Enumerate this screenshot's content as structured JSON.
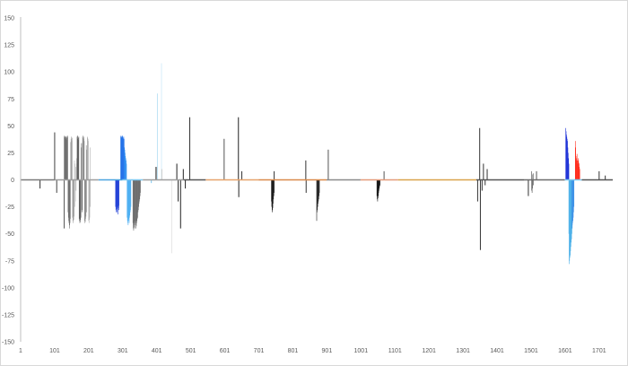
{
  "chart_data": {
    "type": "bar",
    "title": "",
    "xlabel": "",
    "ylabel": "",
    "ylim": [
      -150,
      150
    ],
    "xlim": [
      1,
      1741
    ],
    "grid": false,
    "legend": "none",
    "yticks": [
      "150",
      "125",
      "100",
      "75",
      "50",
      "25",
      "0",
      "-25",
      "-50",
      "-75",
      "-100",
      "-125",
      "-150"
    ],
    "xticks": [
      "1",
      "101",
      "201",
      "301",
      "401",
      "501",
      "601",
      "701",
      "801",
      "901",
      "1001",
      "1101",
      "1201",
      "1301",
      "1401",
      "1501",
      "1601",
      "1701"
    ],
    "baseline_segments": [
      {
        "x0": 1,
        "x1": 101,
        "color": "#7a7a7a"
      },
      {
        "x0": 101,
        "x1": 230,
        "color": "#9e9e9e"
      },
      {
        "x0": 230,
        "x1": 300,
        "color": "#4aa3df"
      },
      {
        "x0": 300,
        "x1": 360,
        "color": "#7ec8ef"
      },
      {
        "x0": 360,
        "x1": 480,
        "color": "#9e9e9e"
      },
      {
        "x0": 480,
        "x1": 545,
        "color": "#555555"
      },
      {
        "x0": 545,
        "x1": 700,
        "color": "#e6a26b"
      },
      {
        "x0": 700,
        "x1": 900,
        "color": "#d98a4b"
      },
      {
        "x0": 900,
        "x1": 1000,
        "color": "#8a8a8a"
      },
      {
        "x0": 1000,
        "x1": 1110,
        "color": "#e39a7a"
      },
      {
        "x0": 1110,
        "x1": 1340,
        "color": "#d9a24b"
      },
      {
        "x0": 1340,
        "x1": 1480,
        "color": "#555555"
      },
      {
        "x0": 1480,
        "x1": 1600,
        "color": "#6b6b6b"
      },
      {
        "x0": 1600,
        "x1": 1650,
        "color": "#7ec8ef"
      },
      {
        "x0": 1650,
        "x1": 1741,
        "color": "#555555"
      }
    ],
    "groups": [
      {
        "x0": 57,
        "x1": 59,
        "values": [
          -8
        ],
        "color": "#333333"
      },
      {
        "x0": 100,
        "x1": 102,
        "values": [
          44
        ],
        "color": "#404040"
      },
      {
        "x0": 106,
        "x1": 108,
        "values": [
          -12
        ],
        "color": "#404040"
      },
      {
        "x0": 128,
        "x1": 130,
        "values": [
          -45
        ],
        "color": "#555555"
      },
      {
        "x0": 129,
        "x1": 147,
        "values": [
          40,
          41,
          40,
          39,
          40,
          38,
          40,
          37,
          39,
          40,
          41,
          40,
          -30,
          -35,
          -38,
          -40,
          -42,
          -45,
          -40,
          -36
        ],
        "color": "#6e6e6e"
      },
      {
        "x0": 148,
        "x1": 158,
        "values": [
          35,
          38,
          40,
          36,
          39,
          -35,
          -38,
          -40,
          -37,
          -34
        ],
        "color": "#9a9a9a"
      },
      {
        "x0": 159,
        "x1": 166,
        "values": [
          18,
          15,
          -25,
          -20,
          12,
          -10,
          20,
          15
        ],
        "color": "#b5b5b5"
      },
      {
        "x0": 167,
        "x1": 182,
        "values": [
          40,
          38,
          41,
          39,
          37,
          40,
          -36,
          -38,
          -40,
          -39,
          -37,
          -35,
          30,
          34,
          -28,
          -30
        ],
        "color": "#5a5a5a"
      },
      {
        "x0": 183,
        "x1": 196,
        "values": [
          40,
          41,
          39,
          38,
          40,
          36,
          -38,
          -40,
          -39,
          -36,
          -34,
          32,
          -30,
          28
        ],
        "color": "#8a8a8a"
      },
      {
        "x0": 197,
        "x1": 206,
        "values": [
          40,
          39,
          38,
          36,
          -38,
          -40,
          -37,
          -35,
          30,
          -25
        ],
        "color": "#b0b0b0"
      },
      {
        "x0": 280,
        "x1": 290,
        "values": [
          -25,
          -28,
          -30,
          -27,
          -25,
          -30,
          -28,
          -32,
          -26,
          -24,
          -28
        ],
        "color": "#1f3fd6"
      },
      {
        "x0": 295,
        "x1": 305,
        "values": [
          40,
          41,
          40,
          39,
          40,
          41,
          40,
          38,
          39,
          40,
          38
        ],
        "color": "#1f6fe8"
      },
      {
        "x0": 306,
        "x1": 312,
        "values": [
          30,
          28,
          25,
          22,
          20,
          18,
          15
        ],
        "color": "#2e8ef0"
      },
      {
        "x0": 314,
        "x1": 325,
        "values": [
          -35,
          -38,
          -40,
          -42,
          -38,
          -36,
          -40,
          -35,
          -33,
          -30,
          -28,
          -25
        ],
        "color": "#4aaef2"
      },
      {
        "x0": 331,
        "x1": 353,
        "values": [
          -40,
          -45,
          -47,
          -44,
          -42,
          -45,
          -40,
          -38,
          -42,
          -45,
          -43,
          -40,
          -38,
          -36,
          -35,
          -30,
          -28,
          -25,
          -22,
          -20,
          -18,
          -15,
          -12
        ],
        "color": "#6b6b6b"
      },
      {
        "x0": 384,
        "x1": 386,
        "values": [
          -3
        ],
        "color": "#7ec8ef"
      },
      {
        "x0": 398,
        "x1": 400,
        "values": [
          12
        ],
        "color": "#111111"
      },
      {
        "x0": 402,
        "x1": 404,
        "values": [
          80
        ],
        "color": "#bfe3f5"
      },
      {
        "x0": 414,
        "x1": 416,
        "values": [
          108
        ],
        "color": "#d6eef9"
      },
      {
        "x0": 415,
        "x1": 417,
        "values": [
          10
        ],
        "color": "#cccccc"
      },
      {
        "x0": 444,
        "x1": 446,
        "values": [
          -68
        ],
        "color": "#e6e6e6"
      },
      {
        "x0": 459,
        "x1": 461,
        "values": [
          15
        ],
        "color": "#222222"
      },
      {
        "x0": 463,
        "x1": 465,
        "values": [
          -20
        ],
        "color": "#222222"
      },
      {
        "x0": 470,
        "x1": 472,
        "values": [
          -45
        ],
        "color": "#222222"
      },
      {
        "x0": 478,
        "x1": 480,
        "values": [
          10
        ],
        "color": "#222222"
      },
      {
        "x0": 484,
        "x1": 486,
        "values": [
          -8
        ],
        "color": "#222222"
      },
      {
        "x0": 497,
        "x1": 499,
        "values": [
          58
        ],
        "color": "#333333"
      },
      {
        "x0": 598,
        "x1": 600,
        "values": [
          38
        ],
        "color": "#555555"
      },
      {
        "x0": 640,
        "x1": 642,
        "values": [
          58
        ],
        "color": "#222222"
      },
      {
        "x0": 641,
        "x1": 643,
        "values": [
          -16
        ],
        "color": "#222222"
      },
      {
        "x0": 650,
        "x1": 652,
        "values": [
          8
        ],
        "color": "#333333"
      },
      {
        "x0": 738,
        "x1": 746,
        "values": [
          -20,
          -25,
          -30,
          -28,
          -26,
          -22,
          -18,
          -15,
          -12
        ],
        "color": "#1a1a1a"
      },
      {
        "x0": 745,
        "x1": 747,
        "values": [
          8
        ],
        "color": "#333333"
      },
      {
        "x0": 838,
        "x1": 840,
        "values": [
          18
        ],
        "color": "#333333"
      },
      {
        "x0": 839,
        "x1": 841,
        "values": [
          -12
        ],
        "color": "#333333"
      },
      {
        "x0": 871,
        "x1": 879,
        "values": [
          -38,
          -30,
          -28,
          -25,
          -22,
          -20,
          -18,
          -15,
          -12
        ],
        "color": "#222222"
      },
      {
        "x0": 904,
        "x1": 906,
        "values": [
          28
        ],
        "color": "#555555"
      },
      {
        "x0": 1048,
        "x1": 1057,
        "values": [
          -15,
          -18,
          -20,
          -17,
          -15,
          -12,
          -10,
          -8,
          -6,
          -5
        ],
        "color": "#111111"
      },
      {
        "x0": 1068,
        "x1": 1070,
        "values": [
          8
        ],
        "color": "#555555"
      },
      {
        "x0": 1343,
        "x1": 1345,
        "values": [
          -20
        ],
        "color": "#333333"
      },
      {
        "x0": 1349,
        "x1": 1351,
        "values": [
          48
        ],
        "color": "#333333"
      },
      {
        "x0": 1351,
        "x1": 1353,
        "values": [
          -65
        ],
        "color": "#333333"
      },
      {
        "x0": 1356,
        "x1": 1358,
        "values": [
          -10
        ],
        "color": "#333333"
      },
      {
        "x0": 1360,
        "x1": 1362,
        "values": [
          15
        ],
        "color": "#333333"
      },
      {
        "x0": 1365,
        "x1": 1367,
        "values": [
          -5
        ],
        "color": "#333333"
      },
      {
        "x0": 1371,
        "x1": 1373,
        "values": [
          10
        ],
        "color": "#333333"
      },
      {
        "x0": 1492,
        "x1": 1494,
        "values": [
          -15
        ],
        "color": "#333333"
      },
      {
        "x0": 1502,
        "x1": 1508,
        "values": [
          8,
          -10,
          -12,
          -8,
          5,
          6,
          -5
        ],
        "color": "#444444"
      },
      {
        "x0": 1516,
        "x1": 1518,
        "values": [
          8
        ],
        "color": "#555555"
      },
      {
        "x0": 1603,
        "x1": 1612,
        "values": [
          48,
          45,
          42,
          40,
          38,
          36,
          30,
          25,
          20,
          15
        ],
        "color": "#1a2fd6"
      },
      {
        "x0": 1612,
        "x1": 1622,
        "values": [
          -50,
          -78,
          -75,
          -72,
          -70,
          -66,
          -62,
          -58,
          -55,
          -50,
          -45
        ],
        "color": "#4ab0e8"
      },
      {
        "x0": 1621,
        "x1": 1627,
        "values": [
          -45,
          -42,
          -40,
          -38,
          -35,
          -30,
          -25
        ],
        "color": "#3a8fe6"
      },
      {
        "x0": 1631,
        "x1": 1644,
        "values": [
          36,
          30,
          22,
          18,
          20,
          24,
          18,
          15,
          20,
          18,
          16,
          15,
          12,
          10
        ],
        "color": "#ff2a1a"
      },
      {
        "x0": 1700,
        "x1": 1702,
        "values": [
          8
        ],
        "color": "#333333"
      },
      {
        "x0": 1718,
        "x1": 1720,
        "values": [
          4
        ],
        "color": "#333333"
      }
    ]
  }
}
